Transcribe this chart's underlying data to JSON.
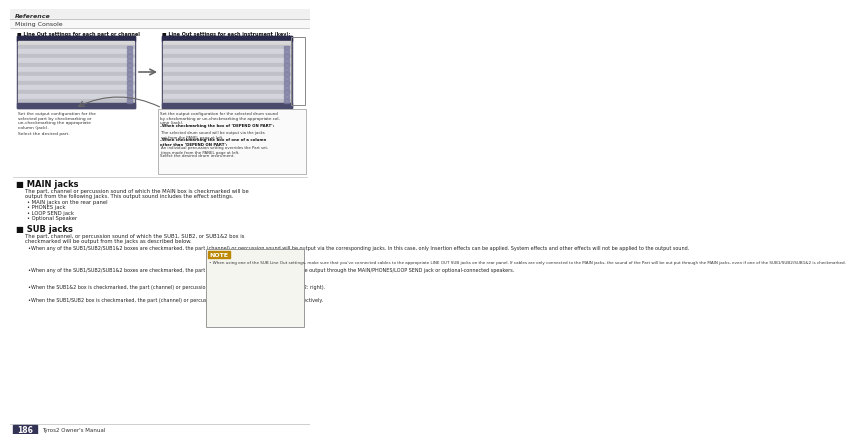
{
  "bg_color": "#ffffff",
  "reference_text": "Reference",
  "mixing_console_text": "Mixing Console",
  "page_number": "186",
  "manual_text": "Tyros2 Owner's Manual",
  "section1_title": "■ MAIN jacks",
  "section1_body1": "The part, channel or percussion sound of which the MAIN box is checkmarked will be",
  "section1_body2": "output from the following jacks. This output sound includes the effect settings.",
  "section1_bullets": [
    "MAIN jacks on the rear panel",
    "PHONES jack",
    "LOOP SEND jack",
    "Optional Speaker"
  ],
  "section2_title": "■ SUB jacks",
  "section2_body1": "The part, channel, or percussion sound of which the SUB1, SUB2, or SUB1&2 box is",
  "section2_body2": "checkmarked will be output from the jacks as described below.",
  "section2_bullets": [
    "When any of the SUB1/SUB2/SUB1&2 boxes are checkmarked, the part (channel) or percussion sound will be output via the corresponding jacks. In this case, only Insertion effects can be applied. System effects and other effects will not be applied to the output sound.",
    "When any of the SUB1/SUB2/SUB1&2 boxes are checkmarked, the part (channel) or percussion sound will not be output through the MAIN/PHONES/LOOP SEND jack or optional-connected speakers.",
    "When the SUB1&2 box is checkmarked, the part (channel) or percussion sound will be output in stereo (1: left, 2: right).",
    "When the SUB1/SUB2 box is checkmarked, the part (channel) or percussion sound will be output in mono, respectively."
  ],
  "diagram_label1": "■ Line Out settings for each part or channel",
  "diagram_label2": "■ Line Out settings for each instrument (key):",
  "note_title": "NOTE",
  "note_bullet": "•",
  "note_text": "When using one of the SUB Line Out settings, make sure that you've connected cables to the appropriate LINE OUT SUB jacks on the rear panel. If cables are only connected to the MAIN jacks, the sound of the Part will be out put through the MAIN jacks, even if one of the SUB1/SUB2/SUB1&2 is checkmarked.",
  "caption1": "Set the output configuration for the\nselected part by checkmarking or\nun-checkmarking the appropriate\ncolumn (jack).",
  "caption2": "Select the desired part.",
  "caption3": "Set the output configuration for the selected drum sound\nby checkmarking or un-checkmarking the appropriate col-\numn (jack).",
  "caption4_bold1": "–When checkmarking the box of ‘DEPEND ON PART’:",
  "caption4_text1": "The selected drum sound will be output via the jacks\nset from the PANEL page at left.",
  "caption4_bold2": "–When checkmarking the box of one of a column\nother than ‘DEPEND ON PART’:",
  "caption4_text2": "An individual percussion setting overrides the Part set-\ntings made from the PANEL page at left.",
  "caption5": "Select the desired drum instrument.",
  "panel_dark": "#3a3a5c",
  "panel_header": "#2a2a4c",
  "panel_row1": "#c0c0c8",
  "panel_row2": "#d4d4dc",
  "panel_check": "#7878a0",
  "panel_bottom": "#4a4a6c"
}
